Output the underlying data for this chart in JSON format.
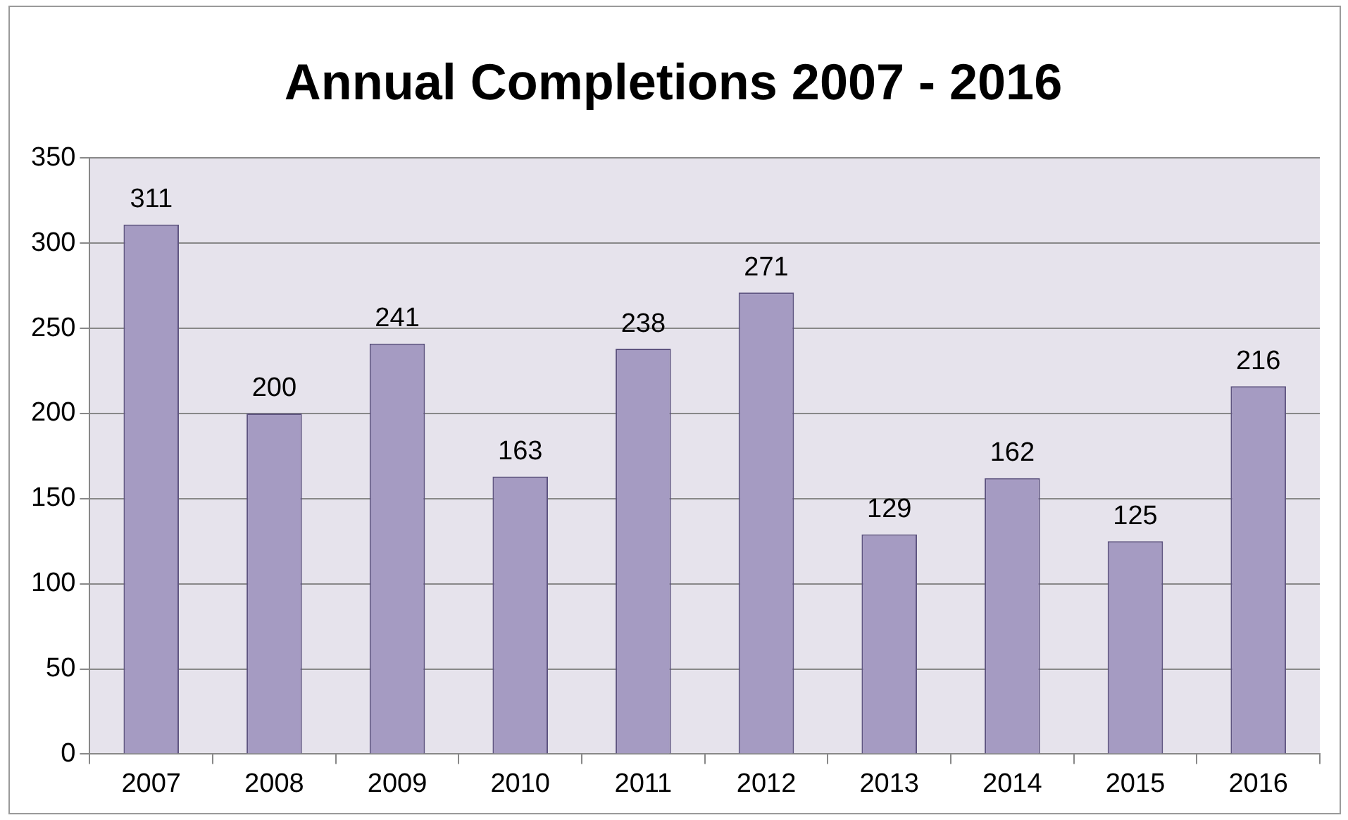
{
  "chart_data": {
    "type": "bar",
    "title": "Annual Completions 2007 - 2016",
    "categories": [
      "2007",
      "2008",
      "2009",
      "2010",
      "2011",
      "2012",
      "2013",
      "2014",
      "2015",
      "2016"
    ],
    "values": [
      311,
      200,
      241,
      163,
      238,
      271,
      129,
      162,
      125,
      216
    ],
    "color": "#a59bc2",
    "ylim": [
      0,
      350
    ],
    "yticks": [
      0,
      50,
      100,
      150,
      200,
      250,
      300,
      350
    ],
    "grid": "y",
    "data_labels": true,
    "legend": false
  }
}
